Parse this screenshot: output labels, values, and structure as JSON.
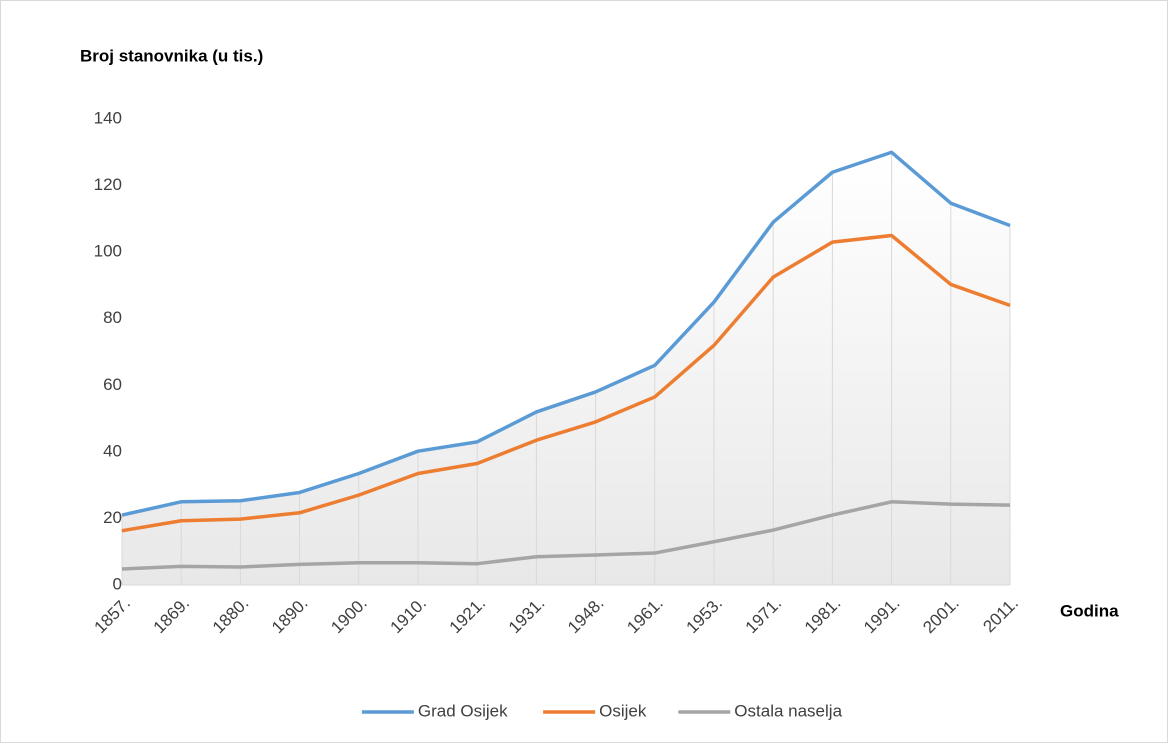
{
  "chart_data": {
    "type": "line",
    "y_axis_title": "Broj stanovnika (u tis.)",
    "x_axis_title": "Godina",
    "categories": [
      "1857.",
      "1869.",
      "1880.",
      "1890.",
      "1900.",
      "1910.",
      "1921.",
      "1931.",
      "1948.",
      "1961.",
      "1953.",
      "1971.",
      "1981.",
      "1991.",
      "2001.",
      "2011."
    ],
    "series": [
      {
        "name": "Grad Osijek",
        "color": "#5b9bd5",
        "values": [
          21,
          25,
          25.3,
          27.8,
          33.5,
          40.2,
          43,
          52,
          58,
          66,
          85,
          109,
          124,
          130,
          114.7,
          108
        ]
      },
      {
        "name": "Osijek",
        "color": "#ed7d31",
        "values": [
          16.3,
          19.3,
          19.8,
          21.7,
          27,
          33.5,
          36.5,
          43.5,
          49,
          56.5,
          72,
          92.5,
          103,
          105,
          90.3,
          84
        ]
      },
      {
        "name": "Ostala naselja",
        "color": "#a5a5a5",
        "values": [
          4.8,
          5.6,
          5.4,
          6.2,
          6.7,
          6.7,
          6.4,
          8.5,
          9,
          9.6,
          13,
          16.5,
          21,
          25,
          24.3,
          24
        ]
      }
    ],
    "ylim": [
      0,
      140
    ],
    "yticks": [
      0,
      20,
      40,
      60,
      80,
      100,
      120,
      140
    ],
    "vertical_grid": true,
    "legend": "bottom"
  }
}
